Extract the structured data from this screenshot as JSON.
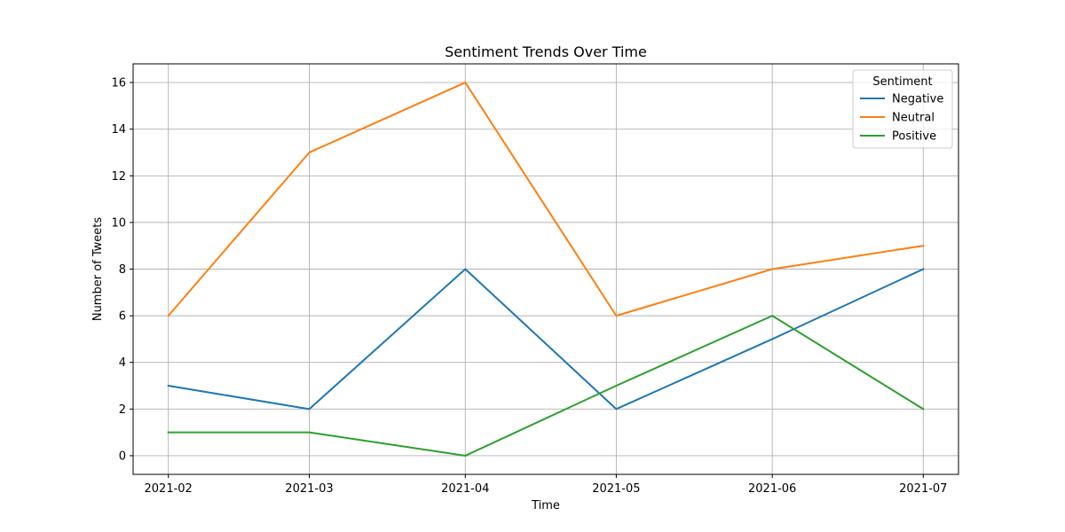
{
  "chart_data": {
    "type": "line",
    "title": "Sentiment Trends Over Time",
    "xlabel": "Time",
    "ylabel": "Number of Tweets",
    "categories": [
      "2021-02",
      "2021-03",
      "2021-04",
      "2021-05",
      "2021-06",
      "2021-07"
    ],
    "x_dates": [
      "2021-01-31",
      "2021-02-28",
      "2021-03-31",
      "2021-04-30",
      "2021-05-31",
      "2021-06-30"
    ],
    "x_range": [
      "2021-01-24",
      "2021-07-07"
    ],
    "yticks": [
      0,
      2,
      4,
      6,
      8,
      10,
      12,
      14,
      16
    ],
    "ylim": [
      -0.8,
      16.8
    ],
    "grid": true,
    "legend": {
      "title": "Sentiment",
      "placement": "top-right"
    },
    "series": [
      {
        "name": "Negative",
        "color": "#1f77b4",
        "values": [
          3,
          2,
          8,
          2,
          5,
          8
        ]
      },
      {
        "name": "Neutral",
        "color": "#ff7f0e",
        "values": [
          6,
          13,
          16,
          6,
          8,
          9
        ]
      },
      {
        "name": "Positive",
        "color": "#2ca02c",
        "values": [
          1,
          1,
          0,
          3,
          6,
          2
        ]
      }
    ]
  }
}
